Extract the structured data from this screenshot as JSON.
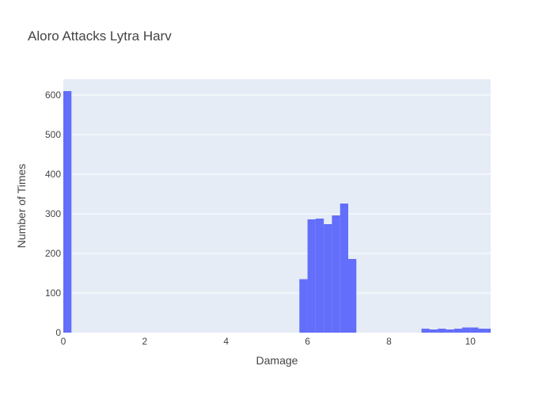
{
  "chart_data": {
    "type": "bar",
    "title": "Aloro Attacks Lytra Harv",
    "xlabel": "Damage",
    "ylabel": "Number of Times",
    "xlim": [
      0,
      10.5
    ],
    "ylim": [
      0,
      640
    ],
    "bin_width": 0.2,
    "xticks": [
      0,
      2,
      4,
      6,
      8,
      10
    ],
    "yticks": [
      0,
      100,
      200,
      300,
      400,
      500,
      600
    ],
    "bins": [
      {
        "x0": 0.0,
        "x1": 0.2,
        "value": 610
      },
      {
        "x0": 5.8,
        "x1": 6.0,
        "value": 135
      },
      {
        "x0": 6.0,
        "x1": 6.2,
        "value": 286
      },
      {
        "x0": 6.2,
        "x1": 6.4,
        "value": 288
      },
      {
        "x0": 6.4,
        "x1": 6.6,
        "value": 274
      },
      {
        "x0": 6.6,
        "x1": 6.8,
        "value": 296
      },
      {
        "x0": 6.8,
        "x1": 7.0,
        "value": 326
      },
      {
        "x0": 7.0,
        "x1": 7.2,
        "value": 186
      },
      {
        "x0": 8.8,
        "x1": 9.0,
        "value": 10
      },
      {
        "x0": 9.0,
        "x1": 9.2,
        "value": 8
      },
      {
        "x0": 9.2,
        "x1": 9.4,
        "value": 10
      },
      {
        "x0": 9.4,
        "x1": 9.6,
        "value": 8
      },
      {
        "x0": 9.6,
        "x1": 9.8,
        "value": 10
      },
      {
        "x0": 9.8,
        "x1": 10.0,
        "value": 13
      },
      {
        "x0": 10.0,
        "x1": 10.2,
        "value": 13
      },
      {
        "x0": 10.2,
        "x1": 10.4,
        "value": 10
      },
      {
        "x0": 10.4,
        "x1": 10.6,
        "value": 10
      }
    ],
    "grid": true,
    "colors": {
      "bar": "#636efa",
      "plot_bg": "#e5ecf6",
      "grid": "#ffffff",
      "text": "#444444"
    }
  }
}
